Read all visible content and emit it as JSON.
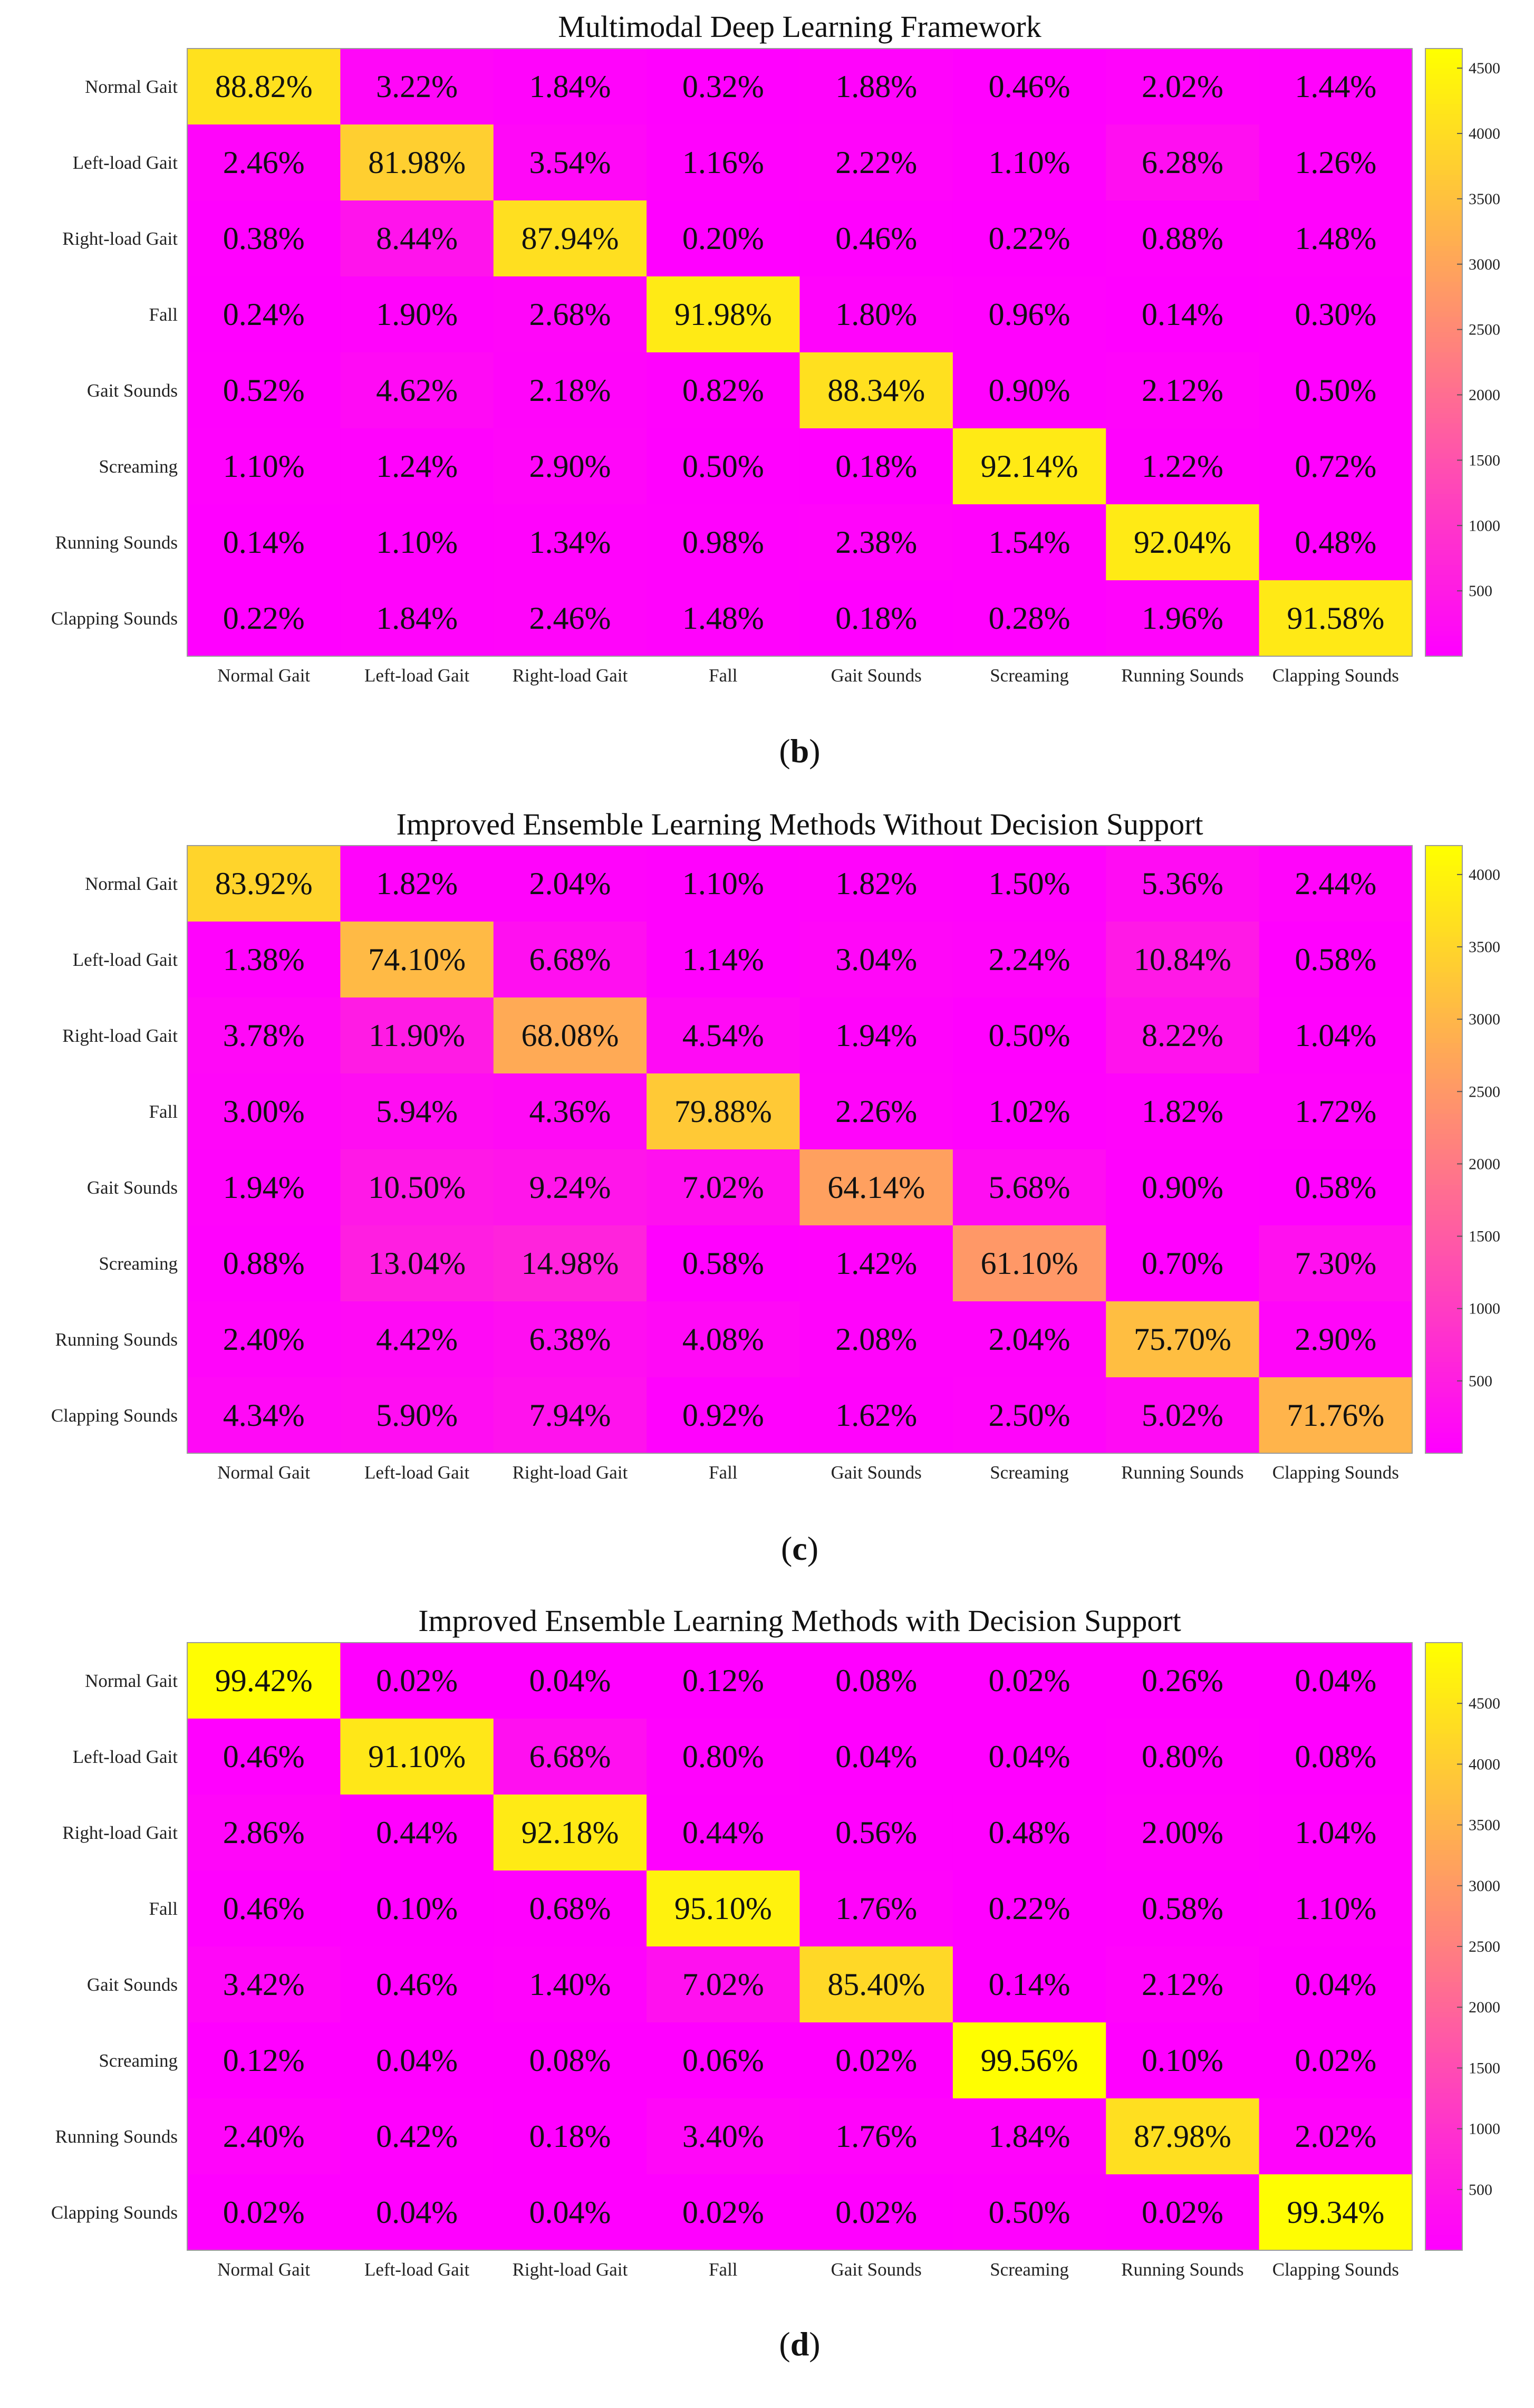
{
  "chart_data": [
    {
      "type": "heatmap",
      "panel_label": "b",
      "title": "Multimodal Deep Learning Framework",
      "row_labels": [
        "Normal Gait",
        "Left-load Gait",
        "Right-load Gait",
        "Fall",
        "Gait Sounds",
        "Screaming",
        "Running Sounds",
        "Clapping Sounds"
      ],
      "col_labels": [
        "Normal Gait",
        "Left-load Gait",
        "Right-load Gait",
        "Fall",
        "Gait Sounds",
        "Screaming",
        "Running Sounds",
        "Clapping Sounds"
      ],
      "cells": [
        [
          "88.82%",
          "3.22%",
          "1.84%",
          "0.32%",
          "1.88%",
          "0.46%",
          "2.02%",
          "1.44%"
        ],
        [
          "2.46%",
          "81.98%",
          "3.54%",
          "1.16%",
          "2.22%",
          "1.10%",
          "6.28%",
          "1.26%"
        ],
        [
          "0.38%",
          "8.44%",
          "87.94%",
          "0.20%",
          "0.46%",
          "0.22%",
          "0.88%",
          "1.48%"
        ],
        [
          "0.24%",
          "1.90%",
          "2.68%",
          "91.98%",
          "1.80%",
          "0.96%",
          "0.14%",
          "0.30%"
        ],
        [
          "0.52%",
          "4.62%",
          "2.18%",
          "0.82%",
          "88.34%",
          "0.90%",
          "2.12%",
          "0.50%"
        ],
        [
          "1.10%",
          "1.24%",
          "2.90%",
          "0.50%",
          "0.18%",
          "92.14%",
          "1.22%",
          "0.72%"
        ],
        [
          "0.14%",
          "1.10%",
          "1.34%",
          "0.98%",
          "2.38%",
          "1.54%",
          "92.04%",
          "0.48%"
        ],
        [
          "0.22%",
          "1.84%",
          "2.46%",
          "1.48%",
          "0.18%",
          "0.28%",
          "1.96%",
          "91.58%"
        ]
      ],
      "colorbar": {
        "min": 0,
        "max": 4650,
        "ticks": [
          500,
          1000,
          1500,
          2000,
          2500,
          3000,
          3500,
          4000,
          4500
        ]
      }
    },
    {
      "type": "heatmap",
      "panel_label": "c",
      "title": "Improved Ensemble Learning Methods Without Decision Support",
      "row_labels": [
        "Normal Gait",
        "Left-load Gait",
        "Right-load Gait",
        "Fall",
        "Gait Sounds",
        "Screaming",
        "Running Sounds",
        "Clapping Sounds"
      ],
      "col_labels": [
        "Normal Gait",
        "Left-load Gait",
        "Right-load Gait",
        "Fall",
        "Gait Sounds",
        "Screaming",
        "Running Sounds",
        "Clapping Sounds"
      ],
      "cells": [
        [
          "83.92%",
          "1.82%",
          "2.04%",
          "1.10%",
          "1.82%",
          "1.50%",
          "5.36%",
          "2.44%"
        ],
        [
          "1.38%",
          "74.10%",
          "6.68%",
          "1.14%",
          "3.04%",
          "2.24%",
          "10.84%",
          "0.58%"
        ],
        [
          "3.78%",
          "11.90%",
          "68.08%",
          "4.54%",
          "1.94%",
          "0.50%",
          "8.22%",
          "1.04%"
        ],
        [
          "3.00%",
          "5.94%",
          "4.36%",
          "79.88%",
          "2.26%",
          "1.02%",
          "1.82%",
          "1.72%"
        ],
        [
          "1.94%",
          "10.50%",
          "9.24%",
          "7.02%",
          "64.14%",
          "5.68%",
          "0.90%",
          "0.58%"
        ],
        [
          "0.88%",
          "13.04%",
          "14.98%",
          "0.58%",
          "1.42%",
          "61.10%",
          "0.70%",
          "7.30%"
        ],
        [
          "2.40%",
          "4.42%",
          "6.38%",
          "4.08%",
          "2.08%",
          "2.04%",
          "75.70%",
          "2.90%"
        ],
        [
          "4.34%",
          "5.90%",
          "7.94%",
          "0.92%",
          "1.62%",
          "2.50%",
          "5.02%",
          "71.76%"
        ]
      ],
      "colorbar": {
        "min": 0,
        "max": 4200,
        "ticks": [
          500,
          1000,
          1500,
          2000,
          2500,
          3000,
          3500,
          4000
        ]
      }
    },
    {
      "type": "heatmap",
      "panel_label": "d",
      "title": "Improved Ensemble Learning Methods with Decision Support",
      "row_labels": [
        "Normal Gait",
        "Left-load Gait",
        "Right-load Gait",
        "Fall",
        "Gait Sounds",
        "Screaming",
        "Running Sounds",
        "Clapping Sounds"
      ],
      "col_labels": [
        "Normal Gait",
        "Left-load Gait",
        "Right-load Gait",
        "Fall",
        "Gait Sounds",
        "Screaming",
        "Running Sounds",
        "Clapping Sounds"
      ],
      "cells": [
        [
          "99.42%",
          "0.02%",
          "0.04%",
          "0.12%",
          "0.08%",
          "0.02%",
          "0.26%",
          "0.04%"
        ],
        [
          "0.46%",
          "91.10%",
          "6.68%",
          "0.80%",
          "0.04%",
          "0.04%",
          "0.80%",
          "0.08%"
        ],
        [
          "2.86%",
          "0.44%",
          "92.18%",
          "0.44%",
          "0.56%",
          "0.48%",
          "2.00%",
          "1.04%"
        ],
        [
          "0.46%",
          "0.10%",
          "0.68%",
          "95.10%",
          "1.76%",
          "0.22%",
          "0.58%",
          "1.10%"
        ],
        [
          "3.42%",
          "0.46%",
          "1.40%",
          "7.02%",
          "85.40%",
          "0.14%",
          "2.12%",
          "0.04%"
        ],
        [
          "0.12%",
          "0.04%",
          "0.08%",
          "0.06%",
          "0.02%",
          "99.56%",
          "0.10%",
          "0.02%"
        ],
        [
          "2.40%",
          "0.42%",
          "0.18%",
          "3.40%",
          "1.76%",
          "1.84%",
          "87.98%",
          "2.02%"
        ],
        [
          "0.02%",
          "0.04%",
          "0.04%",
          "0.02%",
          "0.02%",
          "0.50%",
          "0.02%",
          "99.34%"
        ]
      ],
      "colorbar": {
        "min": 0,
        "max": 5000,
        "ticks": [
          500,
          1000,
          1500,
          2000,
          2500,
          3000,
          3500,
          4000,
          4500
        ]
      }
    }
  ]
}
